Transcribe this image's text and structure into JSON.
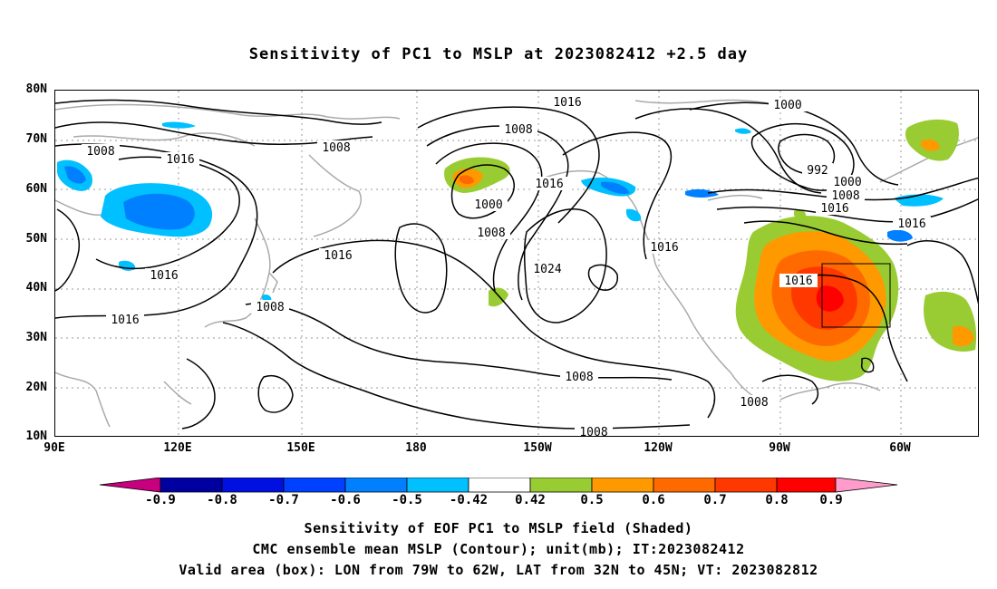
{
  "title": "Sensitivity of PC1 to MSLP at 2023082412 +2.5 day",
  "lat_labels": [
    "80N",
    "70N",
    "60N",
    "50N",
    "40N",
    "30N",
    "20N",
    "10N"
  ],
  "lon_labels": [
    "90E",
    "120E",
    "150E",
    "180",
    "150W",
    "120W",
    "90W",
    "60W"
  ],
  "contour_labels": [
    "1016",
    "1008",
    "1008",
    "1016",
    "1016",
    "1016",
    "1008",
    "1008",
    "1000",
    "1008",
    "1016",
    "1024",
    "1016",
    "1016",
    "1000",
    "992",
    "1000",
    "1008",
    "1016",
    "1016",
    "1016",
    "1008",
    "1008",
    "1008"
  ],
  "colorbar": {
    "labels": [
      "-0.9",
      "-0.8",
      "-0.7",
      "-0.6",
      "-0.5",
      "-0.42",
      "0.42",
      "0.5",
      "0.6",
      "0.7",
      "0.8",
      "0.9"
    ],
    "colors": [
      "#c8007f",
      "#0000a0",
      "#0010e0",
      "#0040ff",
      "#0080ff",
      "#00c0ff",
      "#ffffff",
      "#99cc33",
      "#ff9900",
      "#ff6a00",
      "#ff3800",
      "#ff0000",
      "#ff9ccc"
    ]
  },
  "box_region": {
    "lon": [
      "79W",
      "62W"
    ],
    "lat": [
      "32N",
      "45N"
    ]
  },
  "footer": {
    "line1": "Sensitivity of EOF PC1 to MSLP field (Shaded)",
    "line2": "CMC ensemble mean MSLP (Contour); unit(mb); IT:2023082412",
    "line3": "Valid area (box): LON from 79W to 62W, LAT from 32N to 45N; VT: 2023082812"
  }
}
